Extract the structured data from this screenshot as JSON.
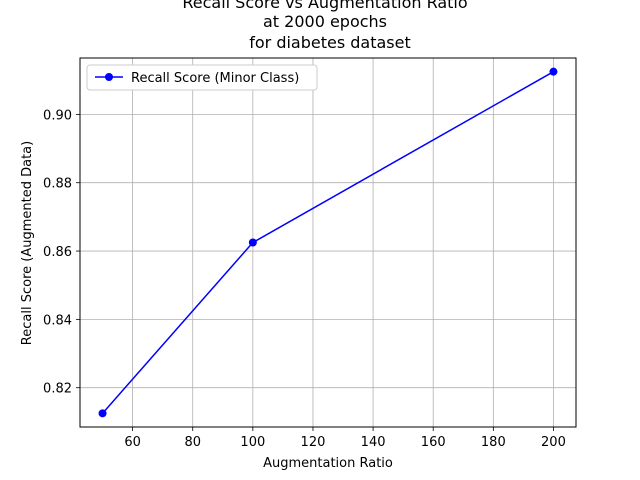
{
  "chart_data": {
    "type": "line",
    "title_lines": [
      "Recall Score vs Augmentation Ratio",
      "at 2000 epochs",
      "for diabetes dataset"
    ],
    "xlabel": "Augmentation Ratio",
    "ylabel": "Recall Score (Augmented Data)",
    "xlim": [
      42.5,
      207.5
    ],
    "ylim": [
      0.8085,
      0.9165
    ],
    "xticks": [
      60,
      80,
      100,
      120,
      140,
      160,
      180,
      200
    ],
    "yticks": [
      0.82,
      0.84,
      0.86,
      0.88,
      0.9
    ],
    "ytick_labels": [
      "0.82",
      "0.84",
      "0.86",
      "0.88",
      "0.90"
    ],
    "grid": true,
    "legend_position": "upper-left",
    "series": [
      {
        "name": "Recall Score (Minor Class)",
        "color": "#0000ff",
        "marker": "circle",
        "x": [
          50,
          100,
          200
        ],
        "y": [
          0.8125,
          0.8625,
          0.9125
        ]
      }
    ]
  }
}
